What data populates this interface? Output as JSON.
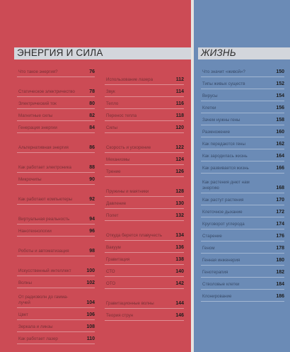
{
  "sections": {
    "energy": {
      "title": "ЭНЕРГИЯ И СИЛА",
      "col1": [
        {
          "t": "Что такое энергия?",
          "p": "76"
        },
        {
          "t": "Статическое электричество",
          "p": "78"
        },
        {
          "t": "Электрический ток",
          "p": "80"
        },
        {
          "t": "Магнитные силы",
          "p": "82"
        },
        {
          "t": "Генерация энергии",
          "p": "84"
        },
        {
          "t": "Альтернативная энергия",
          "p": "86"
        },
        {
          "t": "Как работает электроника",
          "p": "88"
        },
        {
          "t": "Микрочипы",
          "p": "90"
        },
        {
          "t": "Как работают компьютеры",
          "p": "92"
        },
        {
          "t": "Виртуальная реальность",
          "p": "94"
        },
        {
          "t": "Нанотехнологии",
          "p": "96"
        },
        {
          "t": "Роботы и автоматизация",
          "p": "98"
        },
        {
          "t": "Искусственный интеллект",
          "p": "100"
        },
        {
          "t": "Волны",
          "p": "102"
        },
        {
          "t": "От радиоволн до гамма-лучей",
          "p": "104"
        },
        {
          "t": "Цвет",
          "p": "106"
        },
        {
          "t": "Зеркала и линзы",
          "p": "108"
        },
        {
          "t": "Как работает лазер",
          "p": "110"
        }
      ],
      "col2": [
        {
          "t": "Использование лазера",
          "p": "112"
        },
        {
          "t": "Звук",
          "p": "114"
        },
        {
          "t": "Тепло",
          "p": "116"
        },
        {
          "t": "Перенос тепла",
          "p": "118"
        },
        {
          "t": "Силы",
          "p": "120"
        },
        {
          "t": "Скорость и ускорение",
          "p": "122"
        },
        {
          "t": "Механизмы",
          "p": "124"
        },
        {
          "t": "Трение",
          "p": "126"
        },
        {
          "t": "Пружины и маятники",
          "p": "128"
        },
        {
          "t": "Давление",
          "p": "130"
        },
        {
          "t": "Полет",
          "p": "132"
        },
        {
          "t": "Откуда берется плавучесть",
          "p": "134"
        },
        {
          "t": "Вакуум",
          "p": "136"
        },
        {
          "t": "Гравитация",
          "p": "138"
        },
        {
          "t": "СТО",
          "p": "140"
        },
        {
          "t": "ОТО",
          "p": "142"
        },
        {
          "t": "Гравитационные волны",
          "p": "144"
        },
        {
          "t": "Теория струн",
          "p": "146"
        }
      ]
    },
    "life": {
      "title": "ЖИЗНЬ",
      "items": [
        {
          "t": "Что значит «живой»?",
          "p": "150"
        },
        {
          "t": "Типы живых существ",
          "p": "152"
        },
        {
          "t": "Вирусы",
          "p": "154"
        },
        {
          "t": "Клетки",
          "p": "156"
        },
        {
          "t": "Зачем нужны гены",
          "p": "158"
        },
        {
          "t": "Размножение",
          "p": "160"
        },
        {
          "t": "Как передаются гены",
          "p": "162"
        },
        {
          "t": "Как зародилась жизнь",
          "p": "164"
        },
        {
          "t": "Как развивается жизнь",
          "p": "166"
        },
        {
          "t": "Как растения днют нам энергию",
          "p": "168"
        },
        {
          "t": "Как растут растения",
          "p": "170"
        },
        {
          "t": "Клеточное дыхание",
          "p": "172"
        },
        {
          "t": "Круговорот углерода",
          "p": "174"
        },
        {
          "t": "Старение",
          "p": "176"
        },
        {
          "t": "Геном",
          "p": "178"
        },
        {
          "t": "Генная инженерия",
          "p": "180"
        },
        {
          "t": "Генотерапия",
          "p": "182"
        },
        {
          "t": "Стволовые клетки",
          "p": "184"
        },
        {
          "t": "Клонирование",
          "p": "186"
        }
      ]
    }
  },
  "colors": {
    "energy_panel": "#cc4b55",
    "life_panel": "#6b8bb6",
    "header_bar": "#d3d6dc"
  }
}
